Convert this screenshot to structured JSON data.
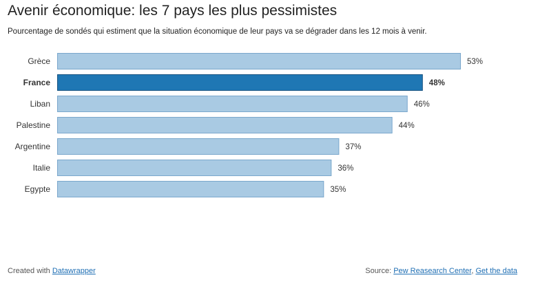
{
  "chart_data": {
    "type": "bar",
    "orientation": "horizontal",
    "title": "Avenir économique: les 7 pays les plus pessimistes",
    "subtitle": "Pourcentage de sondés qui estiment que la situation économique de leur pays va se dégrader dans les 12 mois à venir.",
    "categories": [
      "Grèce",
      "France",
      "Liban",
      "Palestine",
      "Argentine",
      "Italie",
      "Egypte"
    ],
    "values": [
      53,
      48,
      46,
      44,
      37,
      36,
      35
    ],
    "value_labels": [
      "53%",
      "48%",
      "46%",
      "44%",
      "37%",
      "36%",
      "35%"
    ],
    "highlight": "France",
    "xlim": [
      0,
      53
    ],
    "grid": false,
    "colors": {
      "bar": "#a9cae3",
      "bar_stroke": "#7aa7cc",
      "highlight": "#1f77b4",
      "highlight_stroke": "#17527f"
    }
  },
  "footer": {
    "created_prefix": "Created with ",
    "created_link": "Datawrapper",
    "source_prefix": "Source: ",
    "source_link": "Pew Reasearch Center",
    "separator": ", ",
    "data_link": "Get the data"
  }
}
